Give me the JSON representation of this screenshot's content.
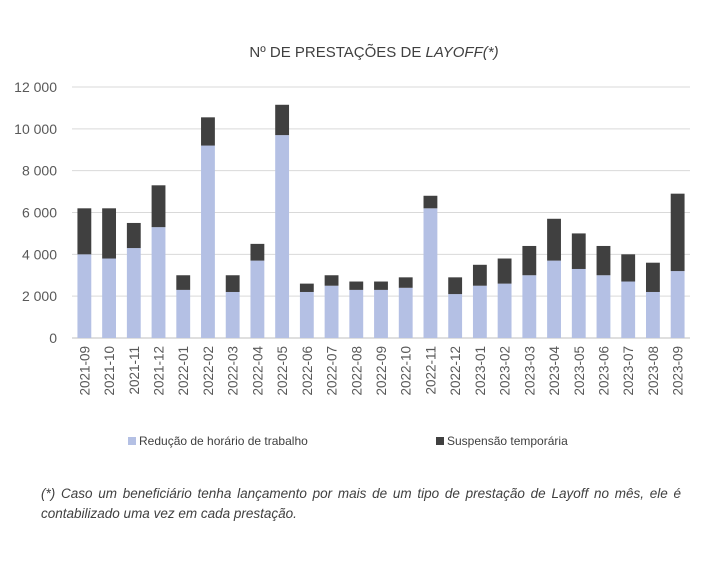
{
  "chart_data": {
    "type": "bar",
    "stacked": true,
    "title": {
      "prefix": "Nº DE PRESTAÇÕES DE ",
      "emphasis": "LAYOFF",
      "suffix": "(*)"
    },
    "categories": [
      "2021-09",
      "2021-10",
      "2021-11",
      "2021-12",
      "2022-01",
      "2022-02",
      "2022-03",
      "2022-04",
      "2022-05",
      "2022-06",
      "2022-07",
      "2022-08",
      "2022-09",
      "2022-10",
      "2022-11",
      "2022-12",
      "2023-01",
      "2023-02",
      "2023-03",
      "2023-04",
      "2023-05",
      "2023-06",
      "2023-07",
      "2023-08",
      "2023-09"
    ],
    "series": [
      {
        "name": "Redução de horário de trabalho",
        "color": "#b4c0e4",
        "values": [
          4000,
          3800,
          4300,
          5300,
          2300,
          9200,
          2200,
          3700,
          9700,
          2200,
          2500,
          2300,
          2300,
          2400,
          6200,
          2100,
          2500,
          2600,
          3000,
          3700,
          3300,
          3000,
          2700,
          2200,
          3200
        ]
      },
      {
        "name": "Suspensão temporária",
        "color": "#404040",
        "values": [
          2200,
          2400,
          1200,
          2000,
          700,
          1350,
          800,
          800,
          1450,
          400,
          500,
          400,
          400,
          500,
          600,
          800,
          1000,
          1200,
          1400,
          2000,
          1700,
          1400,
          1300,
          1400,
          3700
        ]
      }
    ],
    "ylim": [
      0,
      12000
    ],
    "yticks": [
      0,
      2000,
      4000,
      6000,
      8000,
      10000,
      12000
    ],
    "ytick_labels": [
      "0",
      "2 000",
      "4 000",
      "6 000",
      "8 000",
      "10 000",
      "12 000"
    ],
    "grid": true,
    "legend_position": "bottom"
  },
  "footnote": "(*) Caso um beneficiário tenha lançamento por mais de um tipo de prestação de Layoff no mês, ele é contabilizado uma vez em cada prestação."
}
